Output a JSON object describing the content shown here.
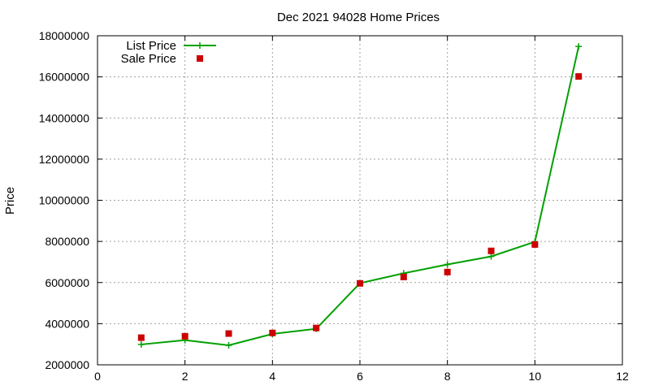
{
  "chart_data": {
    "type": "scatter",
    "title": "Dec 2021 94028 Home Prices",
    "xlabel": "",
    "ylabel": "Price",
    "xlim": [
      0,
      12
    ],
    "ylim": [
      2000000,
      18000000
    ],
    "x_ticks": [
      0,
      2,
      4,
      6,
      8,
      10,
      12
    ],
    "y_ticks": [
      2000000,
      4000000,
      6000000,
      8000000,
      10000000,
      12000000,
      14000000,
      16000000,
      18000000
    ],
    "grid": true,
    "legend_position": "top-left",
    "series": [
      {
        "name": "List Price",
        "style": "line-with-plus-markers",
        "color": "#00a000",
        "x": [
          1,
          2,
          3,
          4,
          5,
          6,
          7,
          8,
          9,
          10,
          11
        ],
        "y": [
          2990000,
          3200000,
          2950000,
          3500000,
          3750000,
          5970000,
          6450000,
          6880000,
          7270000,
          7980000,
          17480000
        ]
      },
      {
        "name": "Sale Price",
        "style": "square-markers",
        "color": "#cc0000",
        "x": [
          1,
          2,
          3,
          4,
          5,
          6,
          7,
          8,
          9,
          10,
          11
        ],
        "y": [
          3320000,
          3390000,
          3520000,
          3550000,
          3790000,
          5960000,
          6270000,
          6510000,
          7540000,
          7850000,
          16020000
        ]
      }
    ]
  }
}
